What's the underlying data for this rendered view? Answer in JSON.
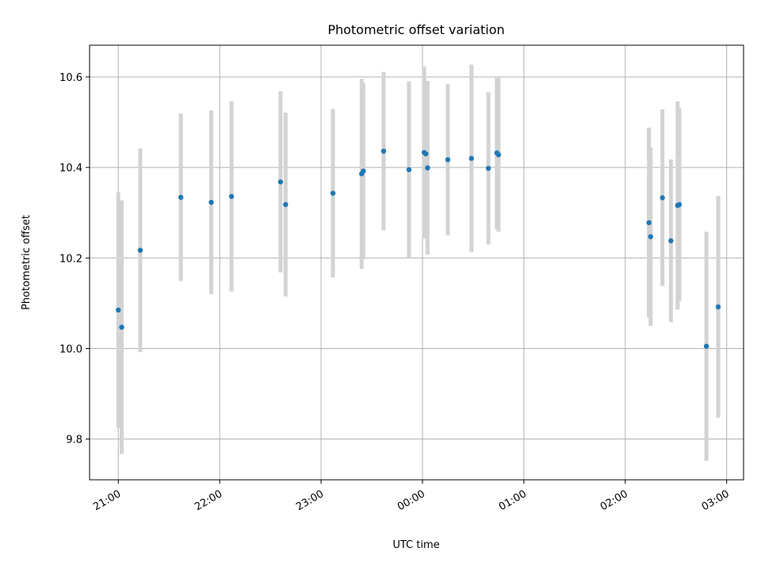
{
  "chart_data": {
    "type": "scatter",
    "title": "Photometric offset variation",
    "xlabel": "UTC time",
    "ylabel": "Photometric offset",
    "x_is_time": true,
    "xlim": [
      "20:43",
      "03:10"
    ],
    "ylim": [
      9.71,
      10.67
    ],
    "x_ticks": [
      "21:00",
      "22:00",
      "23:00",
      "00:00",
      "01:00",
      "02:00",
      "03:00"
    ],
    "y_ticks": [
      "9.8",
      "10.0",
      "10.2",
      "10.4",
      "10.6"
    ],
    "y_tick_values": [
      9.8,
      10.0,
      10.2,
      10.4,
      10.6
    ],
    "grid": true,
    "colors": {
      "points": "#1f77b4",
      "errorbars": "#d3d3d3"
    },
    "series": [
      {
        "marker": "point",
        "points": [
          {
            "x": "21:00",
            "y": 10.085,
            "err": 0.26
          },
          {
            "x": "21:02",
            "y": 10.047,
            "err": 0.28
          },
          {
            "x": "21:13",
            "y": 10.217,
            "err": 0.225
          },
          {
            "x": "21:37",
            "y": 10.334,
            "err": 0.185
          },
          {
            "x": "21:55",
            "y": 10.323,
            "err": 0.203
          },
          {
            "x": "22:07",
            "y": 10.336,
            "err": 0.21
          },
          {
            "x": "22:36",
            "y": 10.368,
            "err": 0.2
          },
          {
            "x": "22:39",
            "y": 10.318,
            "err": 0.203
          },
          {
            "x": "23:07",
            "y": 10.343,
            "err": 0.186
          },
          {
            "x": "23:24",
            "y": 10.386,
            "err": 0.21
          },
          {
            "x": "23:25",
            "y": 10.392,
            "err": 0.195
          },
          {
            "x": "23:37",
            "y": 10.436,
            "err": 0.175
          },
          {
            "x": "23:52",
            "y": 10.395,
            "err": 0.195
          },
          {
            "x": "00:01",
            "y": 10.433,
            "err": 0.19
          },
          {
            "x": "00:02",
            "y": 10.43,
            "err": 0.16
          },
          {
            "x": "00:03",
            "y": 10.399,
            "err": 0.192
          },
          {
            "x": "00:15",
            "y": 10.417,
            "err": 0.167
          },
          {
            "x": "00:29",
            "y": 10.42,
            "err": 0.207
          },
          {
            "x": "00:39",
            "y": 10.398,
            "err": 0.168
          },
          {
            "x": "00:44",
            "y": 10.432,
            "err": 0.168
          },
          {
            "x": "00:45",
            "y": 10.428,
            "err": 0.17
          },
          {
            "x": "02:14",
            "y": 10.278,
            "err": 0.21
          },
          {
            "x": "02:15",
            "y": 10.247,
            "err": 0.197
          },
          {
            "x": "02:22",
            "y": 10.333,
            "err": 0.195
          },
          {
            "x": "02:27",
            "y": 10.238,
            "err": 0.18
          },
          {
            "x": "02:31",
            "y": 10.316,
            "err": 0.23
          },
          {
            "x": "02:32",
            "y": 10.318,
            "err": 0.213
          },
          {
            "x": "02:48",
            "y": 10.005,
            "err": 0.253
          },
          {
            "x": "02:55",
            "y": 10.092,
            "err": 0.245
          }
        ]
      }
    ]
  }
}
